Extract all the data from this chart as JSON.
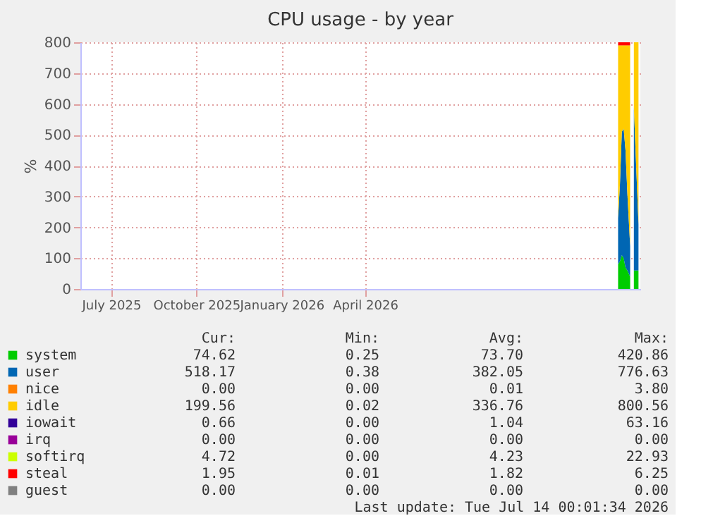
{
  "chart_data": {
    "type": "area",
    "stacked": true,
    "title": "CPU usage - by year",
    "ylabel": "%",
    "x": [
      "2026-12-30",
      "2027-01-01",
      "2027-01-03",
      "2027-01-05",
      "2027-01-07",
      "2027-01-09",
      "2027-01-12",
      "2027-01-14",
      "2027-01-16",
      "2027-01-19",
      "2027-01-21"
    ],
    "series": [
      {
        "name": "system",
        "color": "#00cc00",
        "values": [
          80,
          90,
          110,
          100,
          70,
          60,
          40,
          null,
          60,
          60,
          60
        ]
      },
      {
        "name": "user",
        "color": "#0066b3",
        "values": [
          150,
          250,
          400,
          420,
          380,
          250,
          100,
          null,
          530,
          300,
          150
        ]
      },
      {
        "name": "nice",
        "color": "#ff8000",
        "values": [
          null,
          null,
          null,
          null,
          null,
          null,
          null,
          null,
          null,
          null,
          null
        ]
      },
      {
        "name": "idle",
        "color": "#ffcc00",
        "values": [
          560,
          450,
          280,
          270,
          340,
          480,
          650,
          null,
          210,
          440,
          590
        ]
      },
      {
        "name": "iowait",
        "color": "#330099",
        "values": [
          null,
          null,
          null,
          null,
          null,
          null,
          null,
          null,
          null,
          null,
          null
        ]
      },
      {
        "name": "irq",
        "color": "#990099",
        "values": [
          null,
          null,
          null,
          null,
          null,
          null,
          null,
          null,
          null,
          null,
          null
        ]
      },
      {
        "name": "softirq",
        "color": "#ccff00",
        "values": [
          null,
          null,
          null,
          null,
          null,
          null,
          null,
          null,
          null,
          null,
          null
        ]
      },
      {
        "name": "steal",
        "color": "#ff0000",
        "values": [
          10,
          10,
          10,
          10,
          10,
          10,
          10,
          null,
          null,
          null,
          null
        ]
      },
      {
        "name": "guest",
        "color": "#808080",
        "values": [
          null,
          null,
          null,
          null,
          null,
          null,
          null,
          null,
          null,
          null,
          null
        ]
      }
    ],
    "xlim": [
      "2025-05-29",
      "2027-01-23"
    ],
    "xticks": [
      {
        "value": "2025-07-01",
        "label": "July 2025"
      },
      {
        "value": "2025-10-01",
        "label": "October 2025"
      },
      {
        "value": "2026-01-01",
        "label": "January 2026"
      },
      {
        "value": "2026-04-01",
        "label": "April 2026"
      }
    ],
    "ylim": [
      0,
      800
    ],
    "yticks": [
      0,
      100,
      200,
      300,
      400,
      500,
      600,
      700,
      800
    ],
    "grid": true,
    "legend": "bottom",
    "annotations": [
      "Cur:",
      "Min:",
      "Avg:",
      "Max:",
      "74.62",
      "0.25",
      "73.70",
      "420.86",
      "518.17",
      "0.38",
      "382.05",
      "776.63",
      "0.00",
      "0.00",
      "0.01",
      "3.80",
      "199.56",
      "0.02",
      "336.76",
      "800.56",
      "0.66",
      "0.00",
      "1.04",
      "63.16",
      "0.00",
      "0.00",
      "0.00",
      "0.00",
      "4.72",
      "0.00",
      "4.23",
      "22.93",
      "1.95",
      "0.01",
      "1.82",
      "6.25",
      "0.00",
      "0.00",
      "0.00",
      "0.00",
      "Last update: Tue Jul 14 00:01:34 2026"
    ]
  }
}
